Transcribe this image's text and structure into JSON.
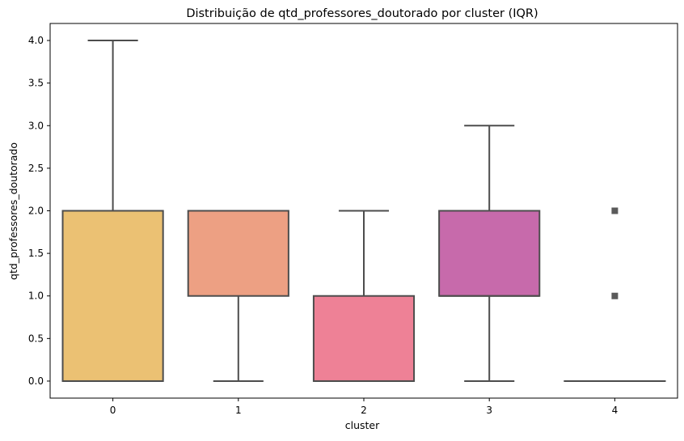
{
  "chart_data": {
    "type": "box",
    "title": "Distribuição de qtd_professores_doutorado por cluster (IQR)",
    "xlabel": "cluster",
    "ylabel": "qtd_professores_doutorado",
    "ylim": [
      -0.2,
      4.2
    ],
    "yticks": [
      "0.0",
      "0.5",
      "1.0",
      "1.5",
      "2.0",
      "2.5",
      "3.0",
      "3.5",
      "4.0"
    ],
    "grid": false,
    "categories": [
      "0",
      "1",
      "2",
      "3",
      "4"
    ],
    "boxes": [
      {
        "category": "0",
        "whisker_low": 0,
        "q1": 0,
        "median": 0,
        "q3": 2,
        "whisker_high": 4,
        "outliers": [],
        "color": "#EBC173"
      },
      {
        "category": "1",
        "whisker_low": 0,
        "q1": 1,
        "median": 2,
        "q3": 2,
        "whisker_high": 2,
        "outliers": [],
        "color": "#EDA083"
      },
      {
        "category": "2",
        "whisker_low": 0,
        "q1": 0,
        "median": 0,
        "q3": 1,
        "whisker_high": 2,
        "outliers": [],
        "color": "#EE8196"
      },
      {
        "category": "3",
        "whisker_low": 0,
        "q1": 1,
        "median": 1,
        "q3": 2,
        "whisker_high": 3,
        "outliers": [],
        "color": "#C76AAB"
      },
      {
        "category": "4",
        "whisker_low": 0,
        "q1": 0,
        "median": 0,
        "q3": 0,
        "whisker_high": 0,
        "outliers": [
          1,
          2
        ],
        "color": "#B05AB8"
      }
    ],
    "line_color": "#4d4d4d"
  }
}
